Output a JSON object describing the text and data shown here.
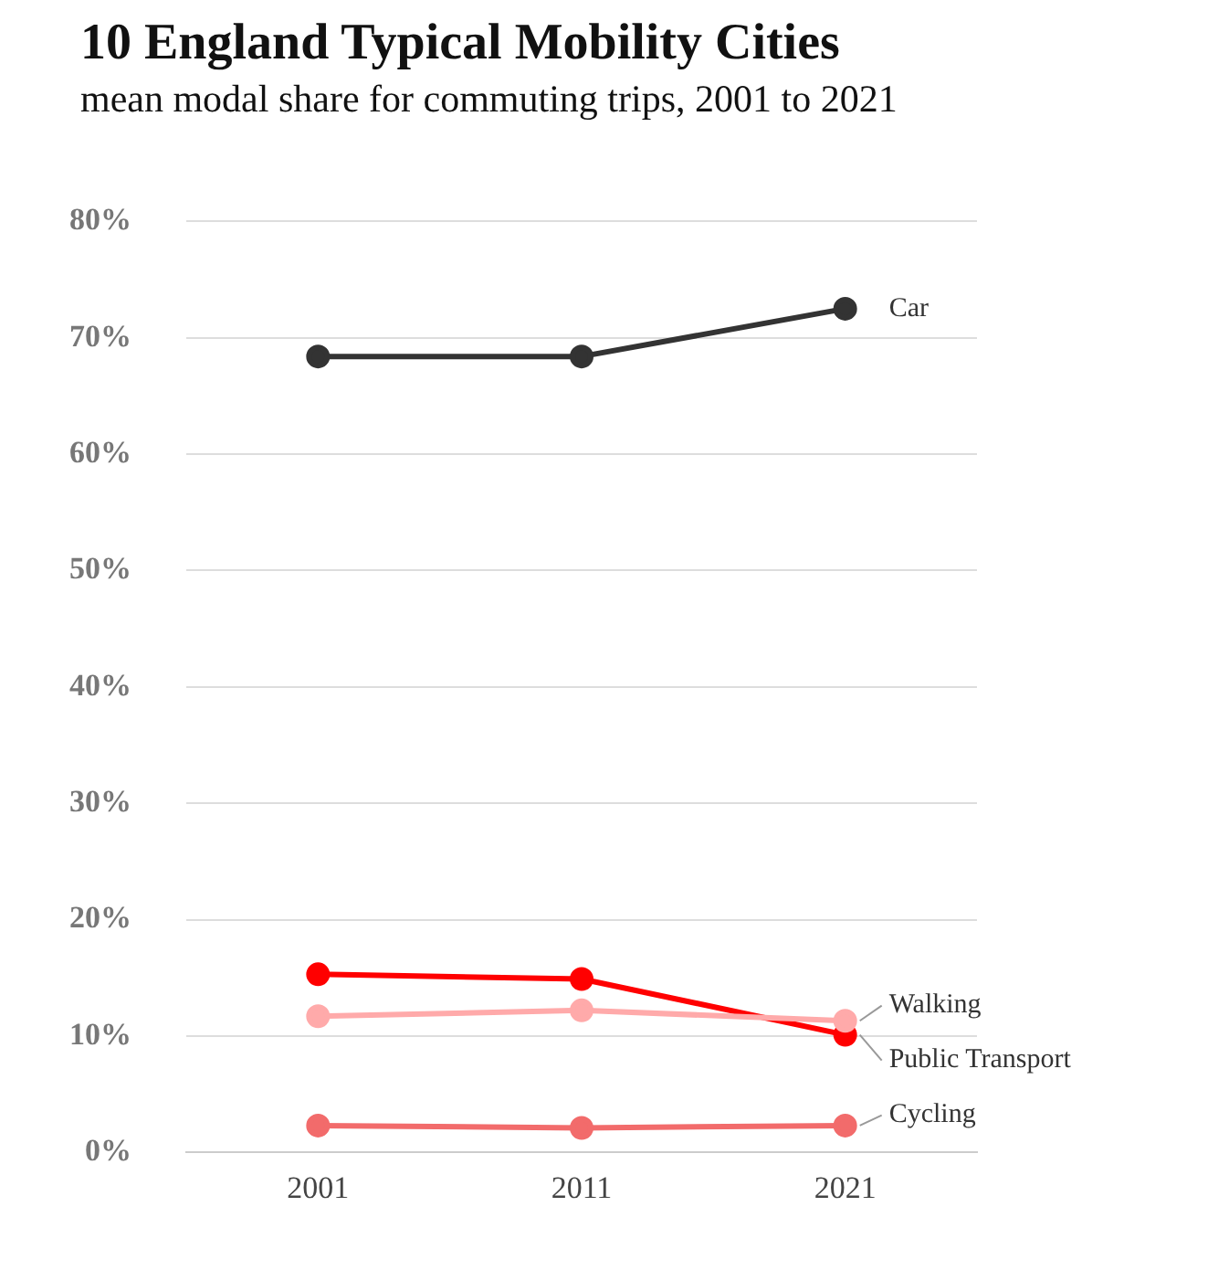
{
  "chart_data": {
    "type": "line",
    "title": "10 England Typical Mobility Cities",
    "subtitle": "mean modal share for commuting trips, 2001 to 2021",
    "categories": [
      "2001",
      "2011",
      "2021"
    ],
    "series": [
      {
        "name": "Car",
        "color": "#333333",
        "values": [
          68.4,
          68.4,
          72.5
        ]
      },
      {
        "name": "Walking",
        "color": "#ffaaaa",
        "values": [
          11.7,
          12.2,
          11.3
        ]
      },
      {
        "name": "Public Transport",
        "color": "#ff0000",
        "values": [
          15.3,
          14.9,
          10.1
        ]
      },
      {
        "name": "Cycling",
        "color": "#f26b6b",
        "values": [
          2.3,
          2.1,
          2.3
        ]
      }
    ],
    "ylim": [
      0,
      80
    ],
    "yticks": [
      {
        "value": 0,
        "label": "0%"
      },
      {
        "value": 10,
        "label": "10%"
      },
      {
        "value": 20,
        "label": "20%"
      },
      {
        "value": 30,
        "label": "30%"
      },
      {
        "value": 40,
        "label": "40%"
      },
      {
        "value": 50,
        "label": "50%"
      },
      {
        "value": 60,
        "label": "60%"
      },
      {
        "value": 70,
        "label": "70%"
      },
      {
        "value": 80,
        "label": "80%"
      }
    ],
    "grid": "y",
    "legend": false,
    "marker": "circle",
    "line_style": "solid"
  }
}
